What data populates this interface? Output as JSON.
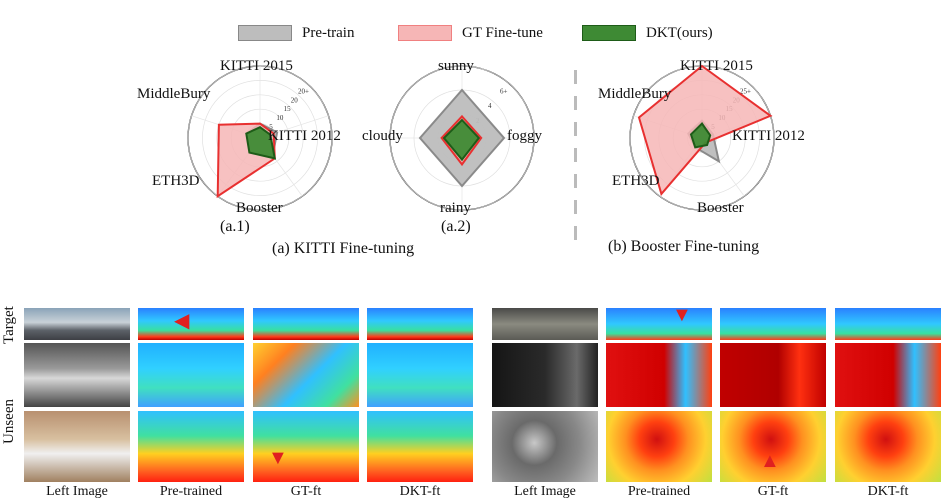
{
  "legend": [
    {
      "label": "Pre-train",
      "color": "#bdbdbd",
      "border": "#888888"
    },
    {
      "label": "GT Fine-tune",
      "color": "#f6b6b6",
      "border": "#f08080"
    },
    {
      "label": "DKT(ours)",
      "color": "#3e8a34",
      "border": "#1e5c18"
    }
  ],
  "chart_data": [
    {
      "type": "radar",
      "axes": [
        "KITTI 2015",
        "KITTI 2012",
        "Booster",
        "ETH3D",
        "MiddleBury"
      ],
      "ticks": [
        "5",
        "10",
        "15",
        "20",
        "20+"
      ],
      "rmax": 20,
      "series": [
        {
          "name": "Pre-train",
          "values": [
            4,
            5,
            6,
            5,
            4
          ]
        },
        {
          "name": "GT Fine-tune",
          "values": [
            4,
            4,
            7,
            20,
            12
          ]
        },
        {
          "name": "DKT(ours)",
          "values": [
            3,
            3,
            7,
            5,
            4
          ]
        }
      ]
    },
    {
      "type": "radar",
      "axes": [
        "sunny",
        "foggy",
        "rainy",
        "cloudy"
      ],
      "ticks": [
        "2",
        "4",
        "6+"
      ],
      "rmax": 6,
      "series": [
        {
          "name": "Pre-train",
          "values": [
            4,
            3.5,
            4,
            3.5
          ]
        },
        {
          "name": "GT Fine-tune",
          "values": [
            1.8,
            1.6,
            2.2,
            1.7
          ]
        },
        {
          "name": "DKT(ours)",
          "values": [
            1.5,
            1.4,
            1.8,
            1.5
          ]
        }
      ]
    },
    {
      "type": "radar",
      "axes": [
        "KITTI 2015",
        "KITTI 2012",
        "Booster",
        "ETH3D",
        "MiddleBury"
      ],
      "ticks": [
        "5",
        "10",
        "15",
        "20",
        "25+"
      ],
      "rmax": 25,
      "series": [
        {
          "name": "Pre-train",
          "values": [
            6,
            4,
            10,
            4,
            5
          ]
        },
        {
          "name": "GT Fine-tune",
          "values": [
            25,
            25,
            2,
            24,
            23
          ]
        },
        {
          "name": "DKT(ours)",
          "values": [
            5,
            3,
            3,
            4,
            4
          ]
        }
      ]
    }
  ],
  "sub_labels": {
    "a1": "(a.1)",
    "a2": "(a.2)"
  },
  "captions": {
    "a": "(a) KITTI Fine-tuning",
    "b": "(b) Booster Fine-tuning"
  },
  "row_labels": {
    "target": "Target",
    "unseen": "Unseen"
  },
  "columns": [
    "Left Image",
    "Pre-trained",
    "GT-ft",
    "DKT-ft",
    "Left Image",
    "Pre-trained",
    "GT-ft",
    "DKT-ft"
  ]
}
